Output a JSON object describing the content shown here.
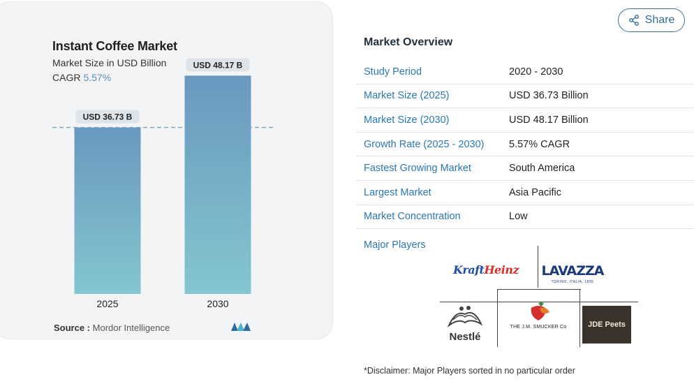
{
  "chart_data": {
    "type": "bar",
    "title": "Instant Coffee Market",
    "subtitle": "Market Size in USD Billion",
    "cagr_label": "CAGR",
    "cagr_value": "5.57%",
    "categories": [
      "2025",
      "2030"
    ],
    "values": [
      36.73,
      48.17
    ],
    "data_labels": [
      "USD 36.73 B",
      "USD 48.17 B"
    ],
    "ylim": [
      0,
      55
    ],
    "colors": {
      "bar_top": "#6a98bf",
      "bar_bottom": "#84c6cf",
      "label_bg": "#dde4ea",
      "reference_line": "#7aa0b4"
    },
    "reference_line_at": 36.73,
    "grid": false,
    "legend": "none"
  },
  "source": {
    "label": "Source :",
    "value": "Mordor Intelligence"
  },
  "share_button": {
    "label": "Share",
    "icon": "share-icon"
  },
  "overview": {
    "title": "Market Overview",
    "rows": [
      {
        "label": "Study Period",
        "value": "2020 - 2030"
      },
      {
        "label": "Market Size (2025)",
        "value": "USD 36.73 Billion"
      },
      {
        "label": "Market Size (2030)",
        "value": "USD 48.17 Billion"
      },
      {
        "label": "Growth Rate (2025 - 2030)",
        "value": "5.57% CAGR"
      },
      {
        "label": "Fastest Growing Market",
        "value": "South America"
      },
      {
        "label": "Largest Market",
        "value": "Asia Pacific"
      },
      {
        "label": "Market Concentration",
        "value": "Low"
      }
    ],
    "players_label": "Major Players",
    "players": {
      "kraft_a": "Kraft",
      "kraft_b": "Heinz",
      "lavazza": "LAVAZZA",
      "lavazza_sub": "TORINO, ITALIA, 1895",
      "nestle": "Nestlé",
      "smucker": "THE J.M. SMUCKER Co",
      "jde": "JDE Peets"
    }
  },
  "disclaimer": "*Disclaimer: Major Players sorted in no particular order"
}
